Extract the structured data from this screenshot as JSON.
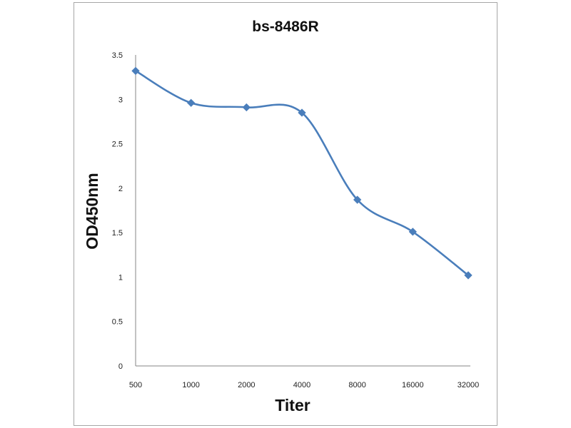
{
  "chart_data": {
    "type": "line",
    "title": "bs-8486R",
    "xlabel": "Titer",
    "ylabel": "OD450nm",
    "categories": [
      "500",
      "1000",
      "2000",
      "4000",
      "8000",
      "16000",
      "32000"
    ],
    "series": [
      {
        "name": "bs-8486R",
        "values": [
          3.32,
          2.96,
          2.91,
          2.85,
          1.87,
          1.51,
          1.02
        ]
      }
    ],
    "ylim": [
      0,
      3.5
    ],
    "yticks": [
      "0",
      "0.5",
      "1",
      "1.5",
      "2",
      "2.5",
      "3",
      "3.5"
    ],
    "grid": false,
    "legend": "none",
    "line_color": "#4a7ebb",
    "smooth": true
  }
}
